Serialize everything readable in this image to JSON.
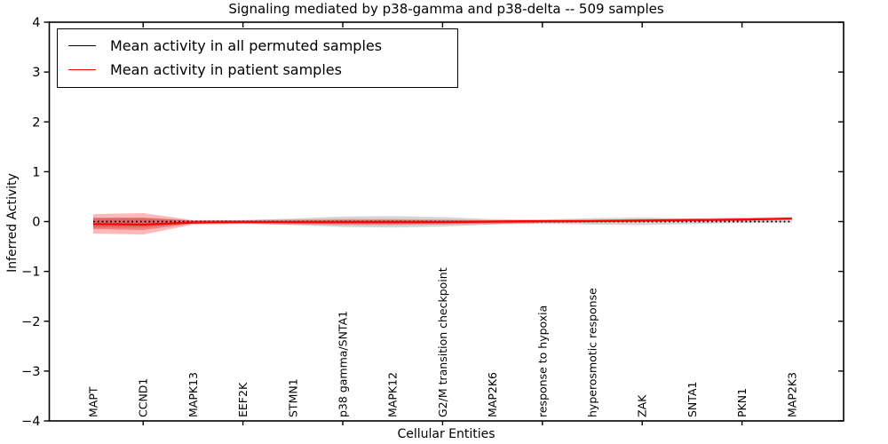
{
  "legend": {
    "items": [
      {
        "label": "Mean activity in all permuted samples",
        "color": "#000000"
      },
      {
        "label": "Mean activity in patient samples",
        "color": "#ff0000"
      }
    ]
  },
  "chart_data": {
    "type": "line",
    "title": "Signaling mediated by p38-gamma and p38-delta -- 509 samples",
    "xlabel": "Cellular Entities",
    "ylabel": "Inferred Activity",
    "ylim": [
      -4,
      4
    ],
    "yticks": [
      4,
      3,
      2,
      1,
      0,
      -1,
      -2,
      -3,
      -4
    ],
    "grid": false,
    "legend_position": "upper left",
    "frame_color": "#000000",
    "categories": [
      "MAPT",
      "CCND1",
      "MAPK13",
      "EEF2K",
      "STMN1",
      "p38 gamma/SNTA1",
      "MAPK12",
      "G2/M transition checkpoint",
      "MAP2K6",
      "response to hypoxia",
      "hyperosmotic response",
      "ZAK",
      "SNTA1",
      "PKN1",
      "MAP2K3"
    ],
    "series": [
      {
        "name": "Mean activity in all permuted samples",
        "color": "#000000",
        "line_style": "dotted",
        "values": [
          0.0,
          0.0,
          0.0,
          0.0,
          0.0,
          0.0,
          0.0,
          0.0,
          0.0,
          0.0,
          0.0,
          0.0,
          0.0,
          0.0,
          0.0
        ]
      },
      {
        "name": "Mean activity in patient samples",
        "color": "#ff0000",
        "line_style": "solid",
        "values": [
          -0.05,
          -0.06,
          -0.02,
          -0.01,
          -0.01,
          -0.01,
          -0.01,
          -0.01,
          0.0,
          0.01,
          0.01,
          0.02,
          0.03,
          0.04,
          0.06
        ]
      }
    ],
    "bands": [
      {
        "name": "permuted-std-band",
        "color": "#888888",
        "opacity": 0.35,
        "upper": [
          0.08,
          0.07,
          0.02,
          0.03,
          0.06,
          0.1,
          0.11,
          0.09,
          0.05,
          0.04,
          0.07,
          0.08,
          0.06,
          0.04,
          0.02
        ],
        "lower": [
          -0.12,
          -0.12,
          -0.03,
          -0.04,
          -0.07,
          -0.11,
          -0.12,
          -0.1,
          -0.06,
          -0.04,
          -0.06,
          -0.07,
          -0.05,
          -0.03,
          -0.02
        ]
      },
      {
        "name": "patient-std-band",
        "color": "#ff0000",
        "opacity": 0.28,
        "upper": [
          0.15,
          0.17,
          0.03,
          0.03,
          0.04,
          0.05,
          0.05,
          0.04,
          0.03,
          0.03,
          0.04,
          0.05,
          0.06,
          0.08,
          0.09
        ],
        "lower": [
          -0.24,
          -0.26,
          -0.06,
          -0.05,
          -0.06,
          -0.07,
          -0.07,
          -0.06,
          -0.05,
          -0.03,
          -0.02,
          -0.01,
          0.0,
          0.01,
          0.03
        ]
      },
      {
        "name": "patient-inner-band",
        "color": "#d40000",
        "opacity": 0.3,
        "upper": [
          0.07,
          0.08,
          0.02,
          0.02,
          0.02,
          0.03,
          0.03,
          0.02,
          0.02,
          0.02,
          0.03,
          0.04,
          0.05,
          0.06,
          0.08
        ],
        "lower": [
          -0.15,
          -0.17,
          -0.04,
          -0.03,
          -0.04,
          -0.05,
          -0.05,
          -0.04,
          -0.03,
          -0.02,
          -0.01,
          0.0,
          0.01,
          0.02,
          0.04
        ]
      }
    ]
  }
}
